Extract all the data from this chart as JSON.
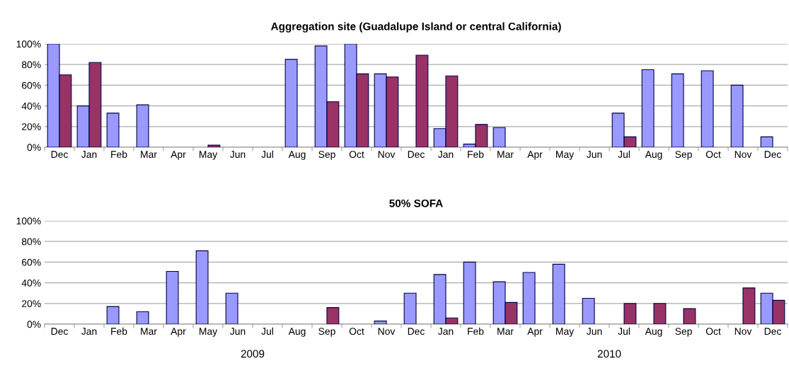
{
  "chart_data": [
    {
      "type": "bar",
      "title": "Aggregation site (Guadalupe Island or central California)",
      "categories": [
        "Dec",
        "Jan",
        "Feb",
        "Mar",
        "Apr",
        "May",
        "Jun",
        "Jul",
        "Aug",
        "Sep",
        "Oct",
        "Nov",
        "Dec",
        "Jan",
        "Feb",
        "Mar",
        "Apr",
        "May",
        "Jun",
        "Jul",
        "Aug",
        "Sep",
        "Oct",
        "Nov",
        "Dec"
      ],
      "series": [
        {
          "color": "#9999ff",
          "values": [
            100,
            40,
            33,
            41,
            null,
            null,
            null,
            null,
            85,
            98,
            100,
            71,
            null,
            18,
            3,
            19,
            null,
            null,
            null,
            33,
            75,
            71,
            74,
            60,
            10
          ]
        },
        {
          "color": "#993366",
          "values": [
            70,
            82,
            null,
            null,
            null,
            2,
            null,
            null,
            null,
            44,
            71,
            68,
            89,
            69,
            22,
            null,
            null,
            null,
            null,
            10,
            null,
            null,
            null,
            null,
            null
          ]
        }
      ],
      "ylim": [
        0,
        100
      ],
      "yticks": [
        {
          "value": 0,
          "label": "0%"
        },
        {
          "value": 20,
          "label": "20%"
        },
        {
          "value": 40,
          "label": "40%"
        },
        {
          "value": 60,
          "label": "60%"
        },
        {
          "value": 80,
          "label": "80%"
        },
        {
          "value": 100,
          "label": "100%"
        }
      ],
      "grid": "y"
    },
    {
      "type": "bar",
      "title": "50% SOFA",
      "categories": [
        "Dec",
        "Jan",
        "Feb",
        "Mar",
        "Apr",
        "May",
        "Jun",
        "Jul",
        "Aug",
        "Sep",
        "Oct",
        "Nov",
        "Dec",
        "Jan",
        "Feb",
        "Mar",
        "Apr",
        "May",
        "Jun",
        "Jul",
        "Aug",
        "Sep",
        "Oct",
        "Nov",
        "Dec"
      ],
      "series": [
        {
          "color": "#9999ff",
          "values": [
            null,
            null,
            17,
            12,
            51,
            71,
            30,
            null,
            null,
            null,
            null,
            3,
            30,
            48,
            60,
            41,
            50,
            58,
            25,
            null,
            null,
            null,
            null,
            null,
            30
          ]
        },
        {
          "color": "#993366",
          "values": [
            null,
            null,
            null,
            null,
            null,
            null,
            null,
            null,
            null,
            16,
            null,
            null,
            null,
            6,
            null,
            21,
            null,
            null,
            null,
            20,
            20,
            15,
            null,
            35,
            23
          ]
        }
      ],
      "ylim": [
        0,
        100
      ],
      "yticks": [
        {
          "value": 0,
          "label": "0%"
        },
        {
          "value": 20,
          "label": "20%"
        },
        {
          "value": 40,
          "label": "40%"
        },
        {
          "value": 60,
          "label": "60%"
        },
        {
          "value": 80,
          "label": "80%"
        },
        {
          "value": 100,
          "label": "100%"
        }
      ],
      "grid": "y",
      "annotations": [
        "2009",
        "2010"
      ]
    }
  ]
}
